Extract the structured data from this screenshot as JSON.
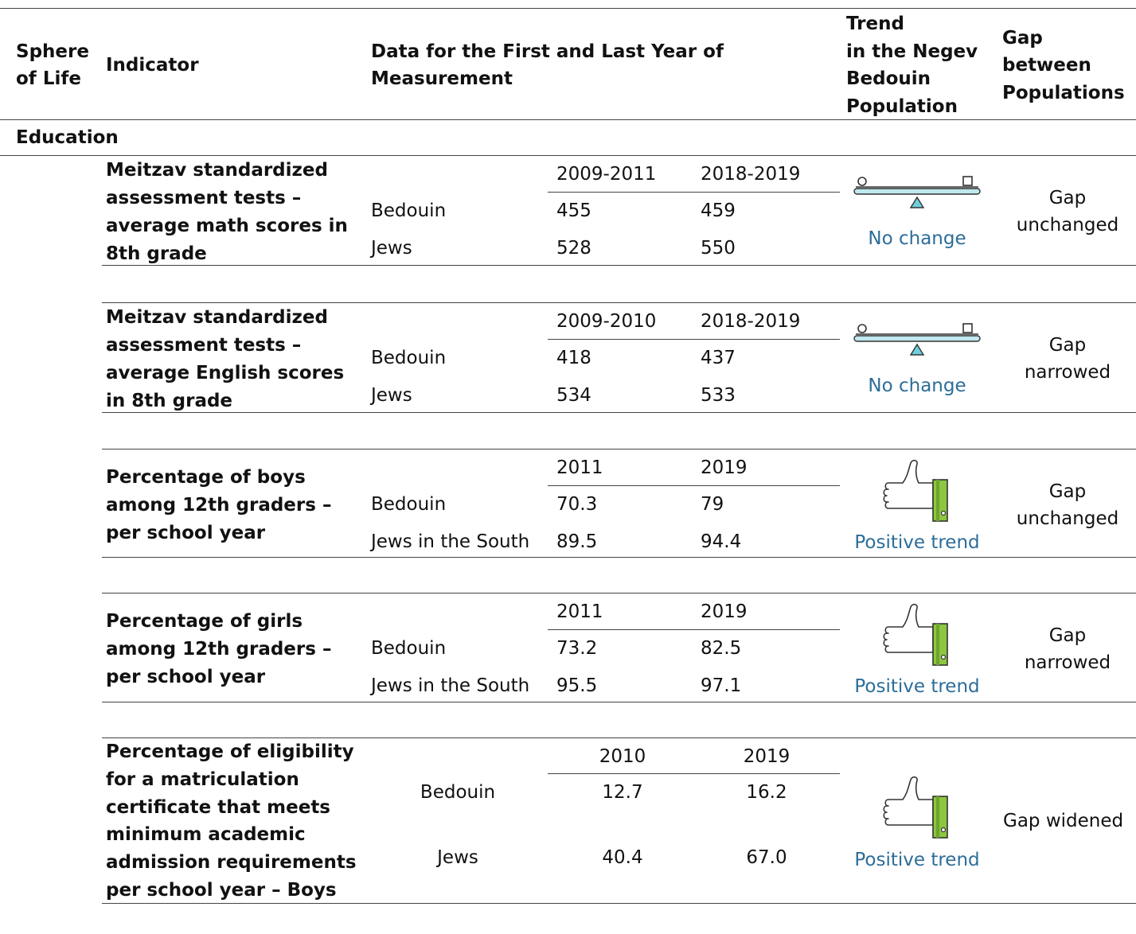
{
  "header": {
    "sphere": [
      "Sphere",
      "of Life"
    ],
    "indicator": "Indicator",
    "data": [
      "Data for the First and Last Year of",
      "Measurement"
    ],
    "trend": [
      "Trend",
      "in the Negev",
      "Bedouin",
      "Population"
    ],
    "gap": [
      "Gap",
      "between",
      "Populations"
    ]
  },
  "section": "Education",
  "rows": [
    {
      "indicator": [
        "Meitzav standardized",
        "assessment tests –",
        "average math scores in",
        "8th grade"
      ],
      "years": [
        "2009-2011",
        "2018-2019"
      ],
      "groups": [
        {
          "name": "Bedouin",
          "values": [
            "455",
            "459"
          ]
        },
        {
          "name": "Jews",
          "values": [
            "528",
            "550"
          ]
        }
      ],
      "trend": "No change",
      "gap": [
        "Gap",
        "unchanged"
      ]
    },
    {
      "indicator": [
        "Meitzav standardized",
        "assessment tests –",
        "average English scores",
        "in 8th grade"
      ],
      "years": [
        "2009-2010",
        "2018-2019"
      ],
      "groups": [
        {
          "name": "Bedouin",
          "values": [
            "418",
            "437"
          ]
        },
        {
          "name": "Jews",
          "values": [
            "534",
            "533"
          ]
        }
      ],
      "trend": "No change",
      "gap": [
        "Gap",
        "narrowed"
      ]
    },
    {
      "indicator": [
        "Percentage of boys",
        "among 12th graders –",
        "per school year"
      ],
      "years": [
        "2011",
        "2019"
      ],
      "groups": [
        {
          "name": "Bedouin",
          "values": [
            "70.3",
            "79"
          ]
        },
        {
          "name": "Jews in the South",
          "values": [
            "89.5",
            "94.4"
          ]
        }
      ],
      "trend": "Positive trend",
      "gap": [
        "Gap",
        "unchanged"
      ]
    },
    {
      "indicator": [
        "Percentage of girls",
        "among 12th graders –",
        "per school year"
      ],
      "years": [
        "2011",
        "2019"
      ],
      "groups": [
        {
          "name": "Bedouin",
          "values": [
            "73.2",
            "82.5"
          ]
        },
        {
          "name": "Jews in the South",
          "values": [
            "95.5",
            "97.1"
          ]
        }
      ],
      "trend": "Positive trend",
      "gap": [
        "Gap",
        "narrowed"
      ]
    },
    {
      "indicator": [
        "Percentage of eligibility",
        "for a matriculation",
        "certificate that meets",
        "minimum academic",
        "admission requirements",
        "per school year – Boys"
      ],
      "years": [
        "2010",
        "2019"
      ],
      "groups": [
        {
          "name": "Bedouin",
          "values": [
            "12.7",
            "16.2"
          ]
        },
        {
          "name": "Jews",
          "values": [
            "40.4",
            "67.0"
          ]
        }
      ],
      "trend": "Positive trend",
      "gap": [
        "Gap widened"
      ]
    }
  ]
}
